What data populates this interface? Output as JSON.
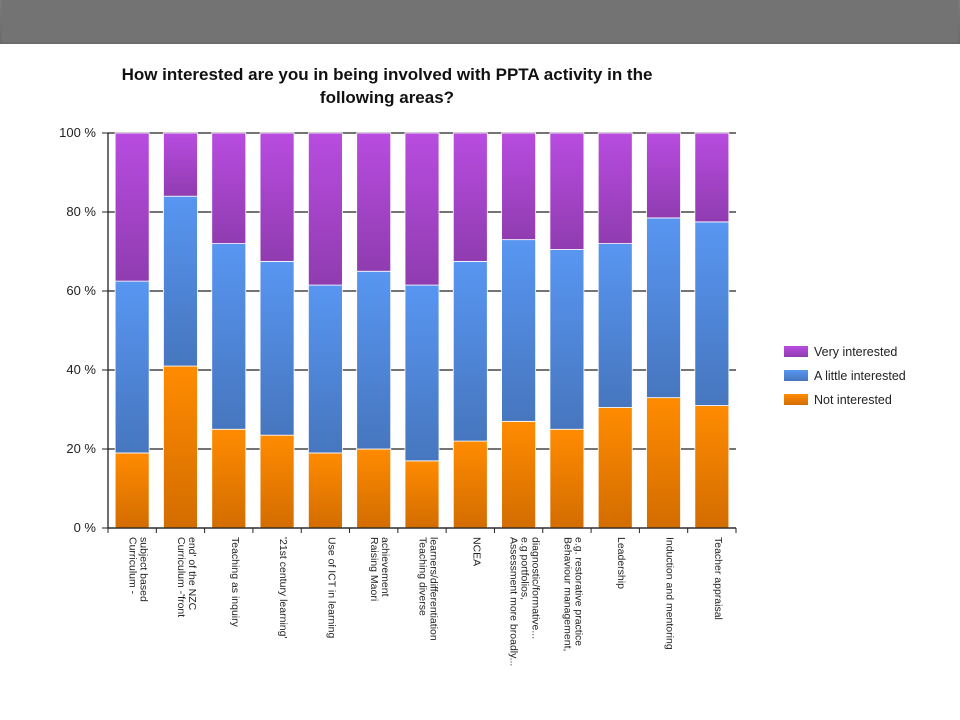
{
  "chart_data": {
    "type": "bar",
    "stacked": true,
    "percent": true,
    "title": [
      "How interested are you in being involved with PPTA activity in the",
      "following areas?"
    ],
    "y_ticks": [
      "0 %",
      "20 %",
      "40 %",
      "60 %",
      "80 %",
      "100 %"
    ],
    "ylim": [
      0,
      100
    ],
    "grid": true,
    "legend_position": "right",
    "categories": [
      [
        "Curriculum -",
        "subject based"
      ],
      [
        "Curriculum -'front",
        "end' of the NZC"
      ],
      [
        "Teaching as inquiry"
      ],
      [
        "'21st century learning'"
      ],
      [
        "Use of ICT in learning"
      ],
      [
        "Raising Maori",
        "achievement"
      ],
      [
        "Teaching diverse",
        "learners/differentiation"
      ],
      [
        "NCEA"
      ],
      [
        "Assessment more broadly...",
        "e.g portfolios,",
        "diagnostic/formative..."
      ],
      [
        "Behaviour management,",
        "e.g. restorative practice"
      ],
      [
        "Leadership"
      ],
      [
        "Induction and mentoring"
      ],
      [
        "Teacher appraisal"
      ]
    ],
    "series": [
      {
        "name": "Not interested",
        "color": "#f07c00",
        "values": [
          19,
          41,
          25,
          23.5,
          19,
          20,
          17,
          22,
          27,
          25,
          30.5,
          33,
          31
        ]
      },
      {
        "name": "A little interested",
        "color": "#4f86d8",
        "values": [
          43.5,
          43,
          47,
          44,
          42.5,
          45,
          44.5,
          45.5,
          46,
          45.5,
          41.5,
          45.5,
          46.5
        ]
      },
      {
        "name": "Very interested",
        "color": "#a444c8",
        "values": [
          37.5,
          16,
          28,
          32.5,
          38.5,
          35,
          38.5,
          32.5,
          27,
          29.5,
          28,
          21.5,
          22.5
        ]
      }
    ],
    "legend_order": [
      "Very interested",
      "A little interested",
      "Not interested"
    ]
  }
}
